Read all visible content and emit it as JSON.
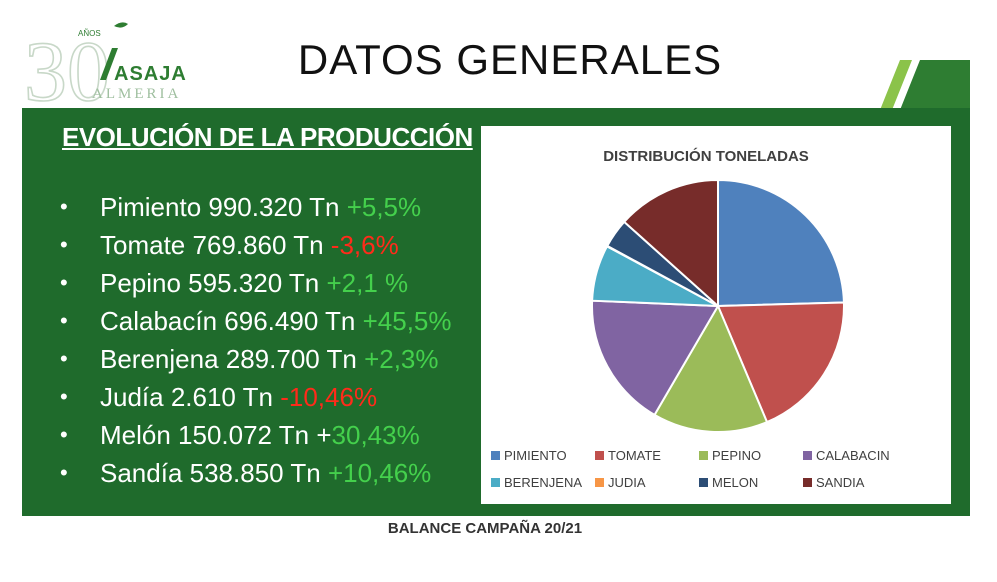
{
  "header": {
    "title": "DATOS GENERALES",
    "logo": {
      "number": "30",
      "anos": "AÑOS",
      "brand": "ASAJA",
      "region": "ALMERIA"
    }
  },
  "panel": {
    "heading": "EVOLUCIÓN DE LA PRODUCCIÓN",
    "items": [
      {
        "text": "Pimiento 990.320 Tn ",
        "pct": "+5,5%",
        "trend": "up"
      },
      {
        "text": "Tomate 769.860 Tn ",
        "pct": "-3,6%",
        "trend": "down"
      },
      {
        "text": "Pepino 595.320 Tn ",
        "pct": "+2,1 %",
        "trend": "up"
      },
      {
        "text": "Calabacín 696.490 Tn ",
        "pct": "+45,5%",
        "trend": "up"
      },
      {
        "text": "Berenjena 289.700 Tn ",
        "pct": "+2,3%",
        "trend": "up"
      },
      {
        "text": "Judía 2.610 Tn ",
        "pct": "-10,46%",
        "trend": "down"
      },
      {
        "text": "Melón 150.072 Tn +",
        "pct": "30,43%",
        "trend": "up"
      },
      {
        "text": "Sandía 538.850 Tn ",
        "pct": "+10,46%",
        "trend": "up"
      }
    ]
  },
  "chart_data": {
    "type": "pie",
    "title": "DISTRIBUCIÓN TONELADAS",
    "categories": [
      "PIMIENTO",
      "TOMATE",
      "PEPINO",
      "CALABACIN",
      "BERENJENA",
      "JUDIA",
      "MELON",
      "SANDIA"
    ],
    "values": [
      990320,
      769860,
      595320,
      696490,
      289700,
      2610,
      150072,
      538850
    ],
    "colors": [
      "#4f81bd",
      "#c0504d",
      "#9bbb59",
      "#8064a2",
      "#4bacc6",
      "#f79646",
      "#2c4d75",
      "#772c2a"
    ],
    "legend": "bottom"
  },
  "footer": {
    "text": "BALANCE CAMPAÑA 20/21"
  }
}
